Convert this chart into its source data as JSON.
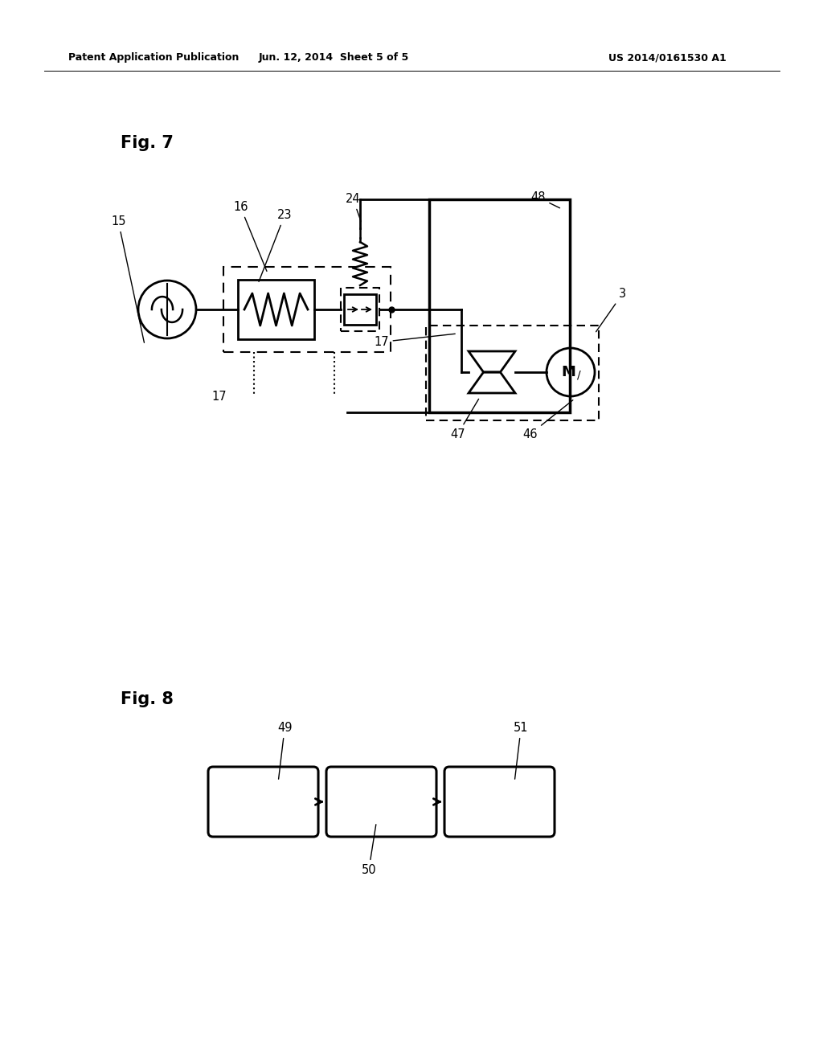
{
  "bg_color": "#ffffff",
  "header_left": "Patent Application Publication",
  "header_mid": "Jun. 12, 2014  Sheet 5 of 5",
  "header_right": "US 2014/0161530 A1",
  "fig7_label": "Fig. 7",
  "fig8_label": "Fig. 8"
}
